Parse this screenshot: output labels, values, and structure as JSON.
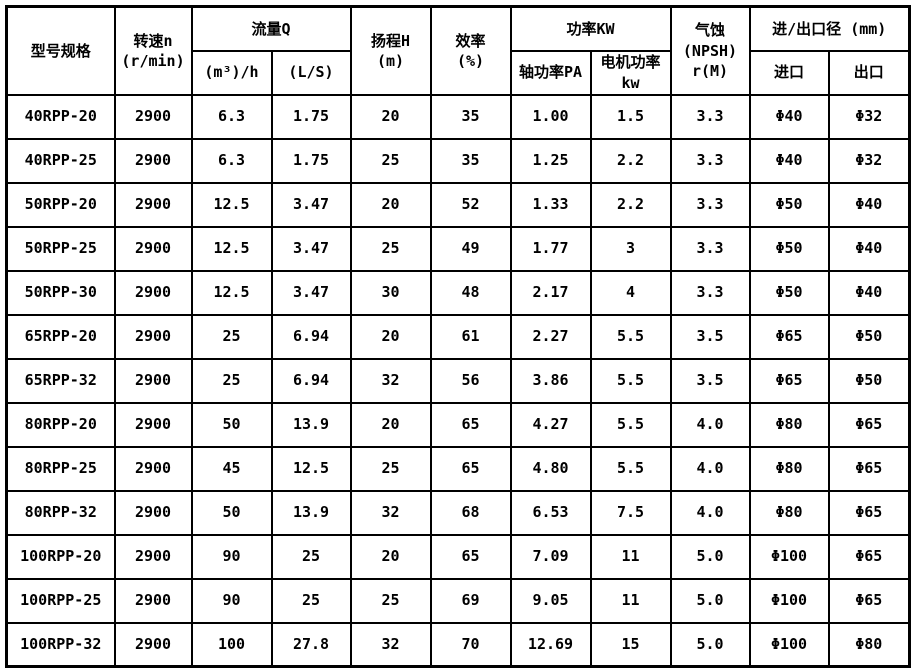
{
  "colors": {
    "background": "#ffffff",
    "border": "#000000",
    "text": "#000000"
  },
  "table": {
    "headers": {
      "model": "型号规格",
      "speed": "转速n\n(r/min)",
      "flow_group": "流量Q",
      "flow_m3h": "(m³)/h",
      "flow_ls": "(L/S)",
      "head": "扬程H\n(m)",
      "efficiency": "效率\n(%)",
      "power_group": "功率KW",
      "shaft_power": "轴功率PA",
      "motor_power": "电机功率\nkw",
      "npsh": "气蚀\n(NPSH)\nr(M)",
      "ports_group": "进/出口径 (mm)",
      "inlet": "进口",
      "outlet": "出口"
    }
  },
  "chart_data": {
    "type": "table",
    "title": "",
    "columns": [
      "型号规格",
      "转速n (r/min)",
      "流量Q (m³)/h",
      "流量Q (L/S)",
      "扬程H (m)",
      "效率 (%)",
      "功率KW 轴功率PA",
      "功率KW 电机功率kw",
      "气蚀(NPSH) r(M)",
      "进/出口径(mm) 进口",
      "进/出口径(mm) 出口"
    ],
    "rows": [
      [
        "40RPP-20",
        "2900",
        "6.3",
        "1.75",
        "20",
        "35",
        "1.00",
        "1.5",
        "3.3",
        "Φ40",
        "Φ32"
      ],
      [
        "40RPP-25",
        "2900",
        "6.3",
        "1.75",
        "25",
        "35",
        "1.25",
        "2.2",
        "3.3",
        "Φ40",
        "Φ32"
      ],
      [
        "50RPP-20",
        "2900",
        "12.5",
        "3.47",
        "20",
        "52",
        "1.33",
        "2.2",
        "3.3",
        "Φ50",
        "Φ40"
      ],
      [
        "50RPP-25",
        "2900",
        "12.5",
        "3.47",
        "25",
        "49",
        "1.77",
        "3",
        "3.3",
        "Φ50",
        "Φ40"
      ],
      [
        "50RPP-30",
        "2900",
        "12.5",
        "3.47",
        "30",
        "48",
        "2.17",
        "4",
        "3.3",
        "Φ50",
        "Φ40"
      ],
      [
        "65RPP-20",
        "2900",
        "25",
        "6.94",
        "20",
        "61",
        "2.27",
        "5.5",
        "3.5",
        "Φ65",
        "Φ50"
      ],
      [
        "65RPP-32",
        "2900",
        "25",
        "6.94",
        "32",
        "56",
        "3.86",
        "5.5",
        "3.5",
        "Φ65",
        "Φ50"
      ],
      [
        "80RPP-20",
        "2900",
        "50",
        "13.9",
        "20",
        "65",
        "4.27",
        "5.5",
        "4.0",
        "Φ80",
        "Φ65"
      ],
      [
        "80RPP-25",
        "2900",
        "45",
        "12.5",
        "25",
        "65",
        "4.80",
        "5.5",
        "4.0",
        "Φ80",
        "Φ65"
      ],
      [
        "80RPP-32",
        "2900",
        "50",
        "13.9",
        "32",
        "68",
        "6.53",
        "7.5",
        "4.0",
        "Φ80",
        "Φ65"
      ],
      [
        "100RPP-20",
        "2900",
        "90",
        "25",
        "20",
        "65",
        "7.09",
        "11",
        "5.0",
        "Φ100",
        "Φ65"
      ],
      [
        "100RPP-25",
        "2900",
        "90",
        "25",
        "25",
        "69",
        "9.05",
        "11",
        "5.0",
        "Φ100",
        "Φ65"
      ],
      [
        "100RPP-32",
        "2900",
        "100",
        "27.8",
        "32",
        "70",
        "12.69",
        "15",
        "5.0",
        "Φ100",
        "Φ80"
      ]
    ]
  }
}
